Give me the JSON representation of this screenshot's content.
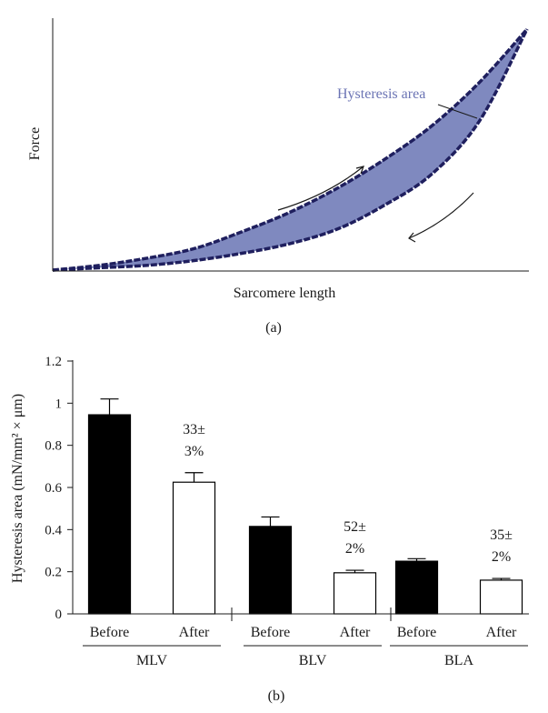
{
  "chart_data": [
    {
      "type": "area",
      "panel_label": "(a)",
      "xlabel": "Sarcomere length",
      "ylabel": "Force",
      "annotation": "Hysteresis area",
      "fill_color": "#7f89bf",
      "line_color": "#1f1f5e",
      "x": [
        0,
        0.1,
        0.2,
        0.3,
        0.4,
        0.5,
        0.6,
        0.7,
        0.8,
        0.9,
        1.0
      ],
      "series": [
        {
          "values": [
            0.0,
            0.02,
            0.05,
            0.09,
            0.16,
            0.24,
            0.34,
            0.46,
            0.6,
            0.78,
            1.0
          ]
        },
        {
          "values": [
            0.0,
            0.01,
            0.02,
            0.04,
            0.07,
            0.11,
            0.17,
            0.27,
            0.4,
            0.62,
            1.0
          ]
        }
      ]
    },
    {
      "type": "bar",
      "panel_label": "(b)",
      "ylabel": "Hysteresis area (mN/mm² × μm)",
      "ylim": [
        0,
        1.2
      ],
      "yticks": [
        "0",
        "0.2",
        "0.4",
        "0.6",
        "0.8",
        "1",
        "1.2"
      ],
      "groups": [
        {
          "name": "MLV",
          "bars": [
            {
              "label": "Before",
              "value": 0.945,
              "error": 0.075,
              "fill": "#000000"
            },
            {
              "label": "After",
              "value": 0.625,
              "error": 0.045,
              "fill": "#ffffff"
            }
          ],
          "annotation": [
            "33±",
            "3%"
          ]
        },
        {
          "name": "BLV",
          "bars": [
            {
              "label": "Before",
              "value": 0.415,
              "error": 0.045,
              "fill": "#000000"
            },
            {
              "label": "After",
              "value": 0.195,
              "error": 0.012,
              "fill": "#ffffff"
            }
          ],
          "annotation": [
            "52±",
            "2%"
          ]
        },
        {
          "name": "BLA",
          "bars": [
            {
              "label": "Before",
              "value": 0.25,
              "error": 0.012,
              "fill": "#000000"
            },
            {
              "label": "After",
              "value": 0.16,
              "error": 0.008,
              "fill": "#ffffff"
            }
          ],
          "annotation": [
            "35±",
            "2%"
          ]
        }
      ]
    }
  ]
}
